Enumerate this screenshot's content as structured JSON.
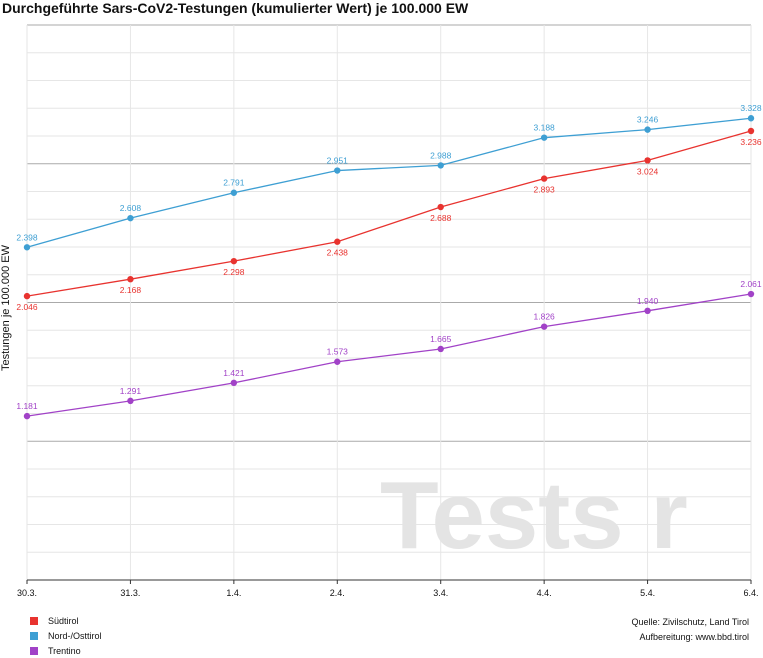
{
  "chart_data": {
    "type": "line",
    "title": "Durchgeführte Sars-CoV2-Testungen (kumulierter Wert) je 100.000 EW",
    "ylabel": "Testungen je 100.000 EW",
    "xlabel": "",
    "categories": [
      "30.3.",
      "31.3.",
      "1.4.",
      "2.4.",
      "3.4.",
      "4.4.",
      "5.4.",
      "6.4."
    ],
    "ylim": [
      0,
      4000
    ],
    "grid": true,
    "legend_position": "bottom-left",
    "watermark": "Tests r",
    "series": [
      {
        "name": "Südtirol",
        "color": "#e8332f",
        "values": [
          2046,
          2168,
          2298,
          2438,
          2688,
          2893,
          3024,
          3236
        ],
        "labels": [
          "2.046",
          "2.168",
          "2.298",
          "2.438",
          "2.688",
          "2.893",
          "3.024",
          "3.236"
        ],
        "label_position": "below"
      },
      {
        "name": "Nord-/Osttirol",
        "color": "#3e9fd3",
        "values": [
          2398,
          2608,
          2791,
          2951,
          2988,
          3188,
          3246,
          3328
        ],
        "labels": [
          "2.398",
          "2.608",
          "2.791",
          "2.951",
          "2.988",
          "3.188",
          "3.246",
          "3.328"
        ],
        "label_position": "above"
      },
      {
        "name": "Trentino",
        "color": "#a142c7",
        "values": [
          1181,
          1291,
          1421,
          1573,
          1665,
          1826,
          1940,
          2061
        ],
        "labels": [
          "1.181",
          "1.291",
          "1.421",
          "1.573",
          "1.665",
          "1.826",
          "1.940",
          "2.061"
        ],
        "label_position": "above"
      }
    ]
  },
  "source": {
    "line1": "Quelle: Zivilschutz, Land Tirol",
    "line2": "Aufbereitung: www.bbd.tirol"
  }
}
